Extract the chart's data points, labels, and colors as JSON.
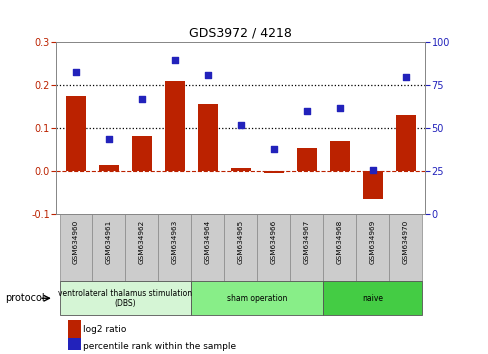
{
  "title": "GDS3972 / 4218",
  "samples": [
    "GSM634960",
    "GSM634961",
    "GSM634962",
    "GSM634963",
    "GSM634964",
    "GSM634965",
    "GSM634966",
    "GSM634967",
    "GSM634968",
    "GSM634969",
    "GSM634970"
  ],
  "log2_ratio": [
    0.175,
    0.015,
    0.083,
    0.21,
    0.157,
    0.008,
    -0.005,
    0.053,
    0.07,
    -0.065,
    0.13
  ],
  "percentile_rank": [
    83,
    44,
    67,
    90,
    81,
    52,
    38,
    60,
    62,
    26,
    80
  ],
  "bar_color": "#bb2200",
  "dot_color": "#2222bb",
  "ylim_left": [
    -0.1,
    0.3
  ],
  "ylim_right": [
    0,
    100
  ],
  "yticks_left": [
    -0.1,
    0.0,
    0.1,
    0.2,
    0.3
  ],
  "yticks_right": [
    0,
    25,
    50,
    75,
    100
  ],
  "hlines": [
    0.1,
    0.2
  ],
  "protocols": [
    {
      "label": "ventrolateral thalamus stimulation\n(DBS)",
      "start": 0,
      "end": 3,
      "color": "#d5f5d5"
    },
    {
      "label": "sham operation",
      "start": 4,
      "end": 7,
      "color": "#88ee88"
    },
    {
      "label": "naive",
      "start": 8,
      "end": 10,
      "color": "#44cc44"
    }
  ],
  "legend_bar_label": "log2 ratio",
  "legend_dot_label": "percentile rank within the sample",
  "protocol_label": "protocol",
  "sample_box_color": "#cccccc",
  "sample_box_edge": "#888888",
  "plot_bg_color": "#ffffff"
}
